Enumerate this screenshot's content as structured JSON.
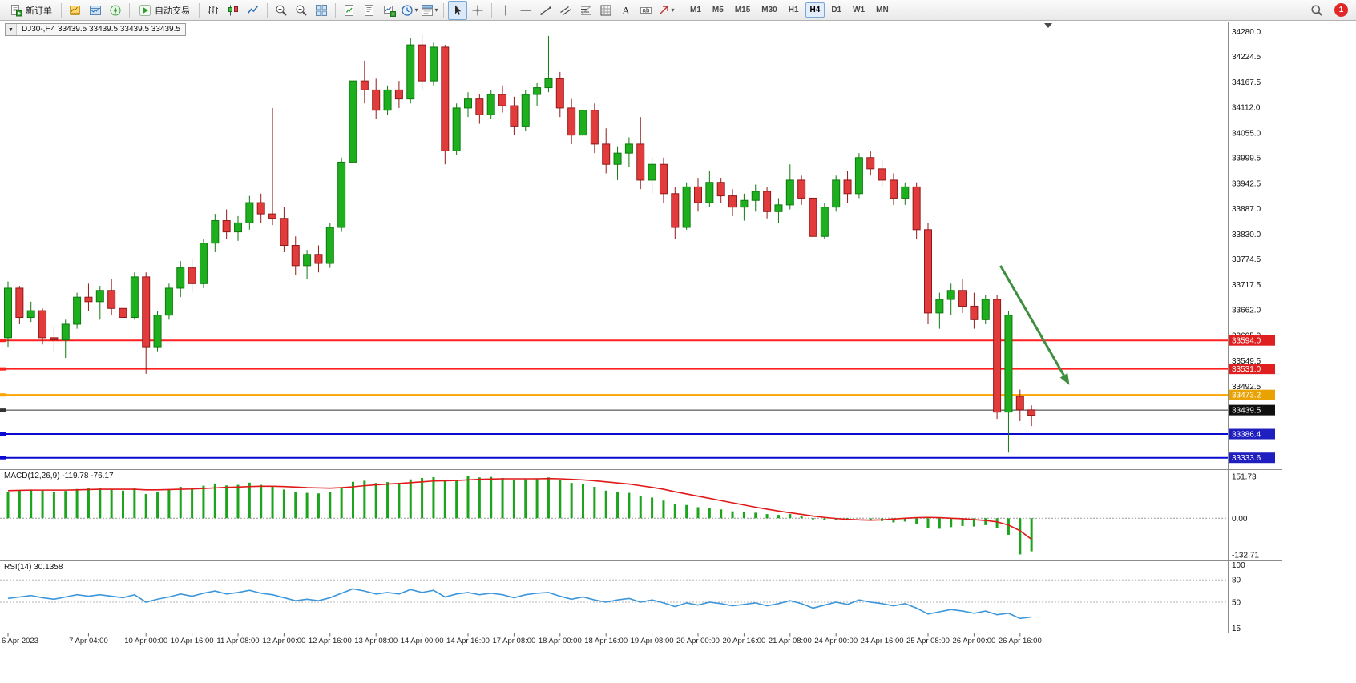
{
  "toolbar": {
    "notification_count": "1",
    "timeframes": [
      "M1",
      "M5",
      "M15",
      "M30",
      "H1",
      "H4",
      "D1",
      "W1",
      "MN"
    ],
    "active_timeframe": "H4",
    "groups": [
      {
        "name": "trade",
        "items": [
          {
            "icon": "new-order-icon",
            "label": "新订单",
            "name": "new-order-button"
          }
        ]
      },
      {
        "name": "windows",
        "items": [
          {
            "icon": "chart-profile-icon",
            "name": "profiles-button"
          },
          {
            "icon": "market-watch-icon",
            "name": "market-watch-button"
          },
          {
            "icon": "navigator-icon",
            "name": "navigator-button"
          }
        ]
      },
      {
        "name": "autotrade",
        "items": [
          {
            "icon": "autotrade-play-icon",
            "label": "自动交易",
            "name": "auto-trading-button"
          }
        ]
      },
      {
        "name": "chart-type",
        "items": [
          {
            "icon": "bars-chart-icon",
            "name": "bars-chart-button"
          },
          {
            "icon": "candles-chart-icon",
            "name": "candles-chart-button"
          },
          {
            "icon": "line-chart-icon",
            "name": "line-chart-button"
          }
        ]
      },
      {
        "name": "zoom",
        "items": [
          {
            "icon": "zoom-in-icon",
            "name": "zoom-in-button"
          },
          {
            "icon": "zoom-out-icon",
            "name": "zoom-out-button"
          },
          {
            "icon": "tile-windows-icon",
            "name": "tile-windows-button"
          }
        ]
      },
      {
        "name": "docs",
        "items": [
          {
            "icon": "indicators-doc-icon",
            "name": "indicators-button"
          },
          {
            "icon": "templates-doc-icon",
            "name": "templates-button"
          },
          {
            "icon": "new-chart-icon",
            "name": "new-chart-button"
          },
          {
            "icon": "period-clock-icon",
            "name": "periods-button",
            "dropdown": true
          },
          {
            "icon": "template-gear-icon",
            "name": "template-button",
            "dropdown": true
          }
        ]
      },
      {
        "name": "cursor",
        "items": [
          {
            "icon": "cursor-icon",
            "name": "cursor-button",
            "active": true
          },
          {
            "icon": "crosshair-icon",
            "name": "crosshair-button"
          }
        ]
      },
      {
        "name": "objects",
        "items": [
          {
            "icon": "vline-icon",
            "name": "vertical-line-button"
          },
          {
            "icon": "hline-icon",
            "name": "horizontal-line-button"
          },
          {
            "icon": "trendline-icon",
            "name": "trendline-button"
          },
          {
            "icon": "channel-icon",
            "name": "channel-button"
          },
          {
            "icon": "fibo-icon",
            "name": "fibonacci-button"
          },
          {
            "icon": "shapes-grid-icon",
            "name": "shapes-button"
          },
          {
            "icon": "text-icon",
            "name": "text-button"
          },
          {
            "icon": "label-icon",
            "name": "label-button"
          },
          {
            "icon": "arrows-icon",
            "name": "arrows-button",
            "dropdown": true
          }
        ]
      }
    ]
  },
  "chart": {
    "symbol": "DJ30-",
    "period": "H4",
    "title": "DJ30-,H4 33439.5 33439.5 33439.5 33439.5",
    "ohlc": {
      "open": "33439.5",
      "high": "33439.5",
      "low": "33439.5",
      "close": "33439.5"
    }
  },
  "chart_data": {
    "type": "candlestick",
    "symbol": "DJ30-",
    "timeframe": "H4",
    "colors": {
      "up": "#1DAF1D",
      "up_edge": "#0E7A0E",
      "down": "#E23B3B",
      "down_edge": "#921919",
      "macd_hist": "#1CA41C",
      "macd_signal": "#E01818",
      "rsi_line": "#3C96D9",
      "arrow": "#3E8E3E"
    },
    "price_axis": {
      "range": [
        33310,
        34300
      ],
      "labels": [
        "34280.0",
        "34224.5",
        "34167.5",
        "34112.0",
        "34055.0",
        "33999.5",
        "33942.5",
        "33887.0",
        "33830.0",
        "33774.5",
        "33717.5",
        "33662.0",
        "33605.0",
        "33549.5",
        "33492.5"
      ]
    },
    "hlines": [
      {
        "price": 33594.0,
        "label": "33594.0",
        "color": "#FF2020",
        "badge": "#E02020",
        "width": 2,
        "kind": "resistance"
      },
      {
        "price": 33531.0,
        "label": "33531.0",
        "color": "#FF2020",
        "badge": "#E02020",
        "width": 2,
        "kind": "resistance"
      },
      {
        "price": 33473.2,
        "label": "33473.2",
        "color": "#FFA500",
        "badge": "#E8A202",
        "width": 2,
        "kind": "level"
      },
      {
        "price": 33439.5,
        "label": "33439.5",
        "color": "#333333",
        "badge": "#101010",
        "width": 1,
        "kind": "current-price"
      },
      {
        "price": 33386.4,
        "label": "33386.4",
        "color": "#0A0AD0",
        "badge": "#1F1FBF",
        "width": 2,
        "kind": "support"
      },
      {
        "price": 33333.6,
        "label": "33333.6",
        "color": "#0A0AD0",
        "badge": "#1F1FBF",
        "width": 2,
        "kind": "support"
      }
    ],
    "x_labels": [
      {
        "i": 0,
        "t": "6 Apr 2023"
      },
      {
        "i": 7,
        "t": "7 Apr 04:00"
      },
      {
        "i": 12,
        "t": "10 Apr 00:00"
      },
      {
        "i": 16,
        "t": "10 Apr 16:00"
      },
      {
        "i": 20,
        "t": "11 Apr 08:00"
      },
      {
        "i": 24,
        "t": "12 Apr 00:00"
      },
      {
        "i": 28,
        "t": "12 Apr 16:00"
      },
      {
        "i": 32,
        "t": "13 Apr 08:00"
      },
      {
        "i": 36,
        "t": "14 Apr 00:00"
      },
      {
        "i": 40,
        "t": "14 Apr 16:00"
      },
      {
        "i": 44,
        "t": "17 Apr 08:00"
      },
      {
        "i": 48,
        "t": "18 Apr 00:00"
      },
      {
        "i": 52,
        "t": "18 Apr 16:00"
      },
      {
        "i": 56,
        "t": "19 Apr 08:00"
      },
      {
        "i": 60,
        "t": "20 Apr 00:00"
      },
      {
        "i": 64,
        "t": "20 Apr 16:00"
      },
      {
        "i": 68,
        "t": "21 Apr 08:00"
      },
      {
        "i": 72,
        "t": "24 Apr 00:00"
      },
      {
        "i": 76,
        "t": "24 Apr 16:00"
      },
      {
        "i": 80,
        "t": "25 Apr 08:00"
      },
      {
        "i": 84,
        "t": "26 Apr 00:00"
      },
      {
        "i": 88,
        "t": "26 Apr 16:00"
      }
    ],
    "candles": [
      [
        33600,
        33725,
        33580,
        33710
      ],
      [
        33710,
        33715,
        33630,
        33645
      ],
      [
        33645,
        33680,
        33635,
        33660
      ],
      [
        33660,
        33665,
        33585,
        33600
      ],
      [
        33600,
        33625,
        33570,
        33595
      ],
      [
        33595,
        33640,
        33555,
        33630
      ],
      [
        33630,
        33700,
        33620,
        33690
      ],
      [
        33690,
        33720,
        33660,
        33680
      ],
      [
        33680,
        33715,
        33640,
        33705
      ],
      [
        33705,
        33730,
        33650,
        33665
      ],
      [
        33665,
        33690,
        33625,
        33645
      ],
      [
        33645,
        33745,
        33640,
        33735
      ],
      [
        33735,
        33745,
        33520,
        33580
      ],
      [
        33580,
        33660,
        33570,
        33650
      ],
      [
        33650,
        33720,
        33640,
        33710
      ],
      [
        33710,
        33770,
        33690,
        33755
      ],
      [
        33755,
        33775,
        33700,
        33720
      ],
      [
        33720,
        33820,
        33710,
        33810
      ],
      [
        33810,
        33875,
        33790,
        33860
      ],
      [
        33860,
        33885,
        33820,
        33835
      ],
      [
        33835,
        33870,
        33815,
        33855
      ],
      [
        33855,
        33915,
        33840,
        33900
      ],
      [
        33900,
        33920,
        33855,
        33875
      ],
      [
        33875,
        34110,
        33850,
        33865
      ],
      [
        33865,
        33890,
        33790,
        33805
      ],
      [
        33805,
        33825,
        33740,
        33760
      ],
      [
        33760,
        33795,
        33730,
        33785
      ],
      [
        33785,
        33805,
        33745,
        33765
      ],
      [
        33765,
        33855,
        33755,
        33845
      ],
      [
        33845,
        34000,
        33835,
        33990
      ],
      [
        33990,
        34185,
        33980,
        34170
      ],
      [
        34170,
        34215,
        34120,
        34150
      ],
      [
        34150,
        34175,
        34085,
        34105
      ],
      [
        34105,
        34160,
        34095,
        34150
      ],
      [
        34150,
        34170,
        34110,
        34130
      ],
      [
        34130,
        34265,
        34120,
        34250
      ],
      [
        34250,
        34275,
        34150,
        34170
      ],
      [
        34170,
        34255,
        34160,
        34245
      ],
      [
        34245,
        34250,
        33985,
        34015
      ],
      [
        34015,
        34120,
        34005,
        34110
      ],
      [
        34110,
        34145,
        34090,
        34130
      ],
      [
        34130,
        34140,
        34075,
        34095
      ],
      [
        34095,
        34150,
        34085,
        34140
      ],
      [
        34140,
        34160,
        34100,
        34115
      ],
      [
        34115,
        34135,
        34050,
        34070
      ],
      [
        34070,
        34150,
        34060,
        34140
      ],
      [
        34140,
        34165,
        34115,
        34155
      ],
      [
        34155,
        34270,
        34145,
        34175
      ],
      [
        34175,
        34190,
        34090,
        34110
      ],
      [
        34110,
        34130,
        34030,
        34050
      ],
      [
        34050,
        34115,
        34040,
        34105
      ],
      [
        34105,
        34120,
        34010,
        34030
      ],
      [
        34030,
        34065,
        33965,
        33985
      ],
      [
        33985,
        34025,
        33950,
        34010
      ],
      [
        34010,
        34045,
        33980,
        34030
      ],
      [
        34030,
        34090,
        33930,
        33950
      ],
      [
        33950,
        34000,
        33920,
        33985
      ],
      [
        33985,
        34000,
        33900,
        33920
      ],
      [
        33920,
        33935,
        33820,
        33845
      ],
      [
        33845,
        33945,
        33840,
        33935
      ],
      [
        33935,
        33955,
        33880,
        33900
      ],
      [
        33900,
        33970,
        33890,
        33945
      ],
      [
        33945,
        33955,
        33900,
        33915
      ],
      [
        33915,
        33930,
        33870,
        33890
      ],
      [
        33890,
        33920,
        33860,
        33905
      ],
      [
        33905,
        33940,
        33880,
        33925
      ],
      [
        33925,
        33935,
        33865,
        33880
      ],
      [
        33880,
        33910,
        33855,
        33895
      ],
      [
        33895,
        33985,
        33885,
        33950
      ],
      [
        33950,
        33960,
        33895,
        33910
      ],
      [
        33910,
        33930,
        33805,
        33825
      ],
      [
        33825,
        33900,
        33820,
        33890
      ],
      [
        33890,
        33960,
        33880,
        33950
      ],
      [
        33950,
        33970,
        33900,
        33920
      ],
      [
        33920,
        34010,
        33910,
        34000
      ],
      [
        34000,
        34015,
        33960,
        33975
      ],
      [
        33975,
        33995,
        33935,
        33950
      ],
      [
        33950,
        33965,
        33895,
        33910
      ],
      [
        33910,
        33945,
        33895,
        33935
      ],
      [
        33935,
        33945,
        33820,
        33840
      ],
      [
        33840,
        33855,
        33630,
        33655
      ],
      [
        33655,
        33700,
        33620,
        33685
      ],
      [
        33685,
        33720,
        33650,
        33705
      ],
      [
        33705,
        33730,
        33655,
        33670
      ],
      [
        33670,
        33700,
        33620,
        33640
      ],
      [
        33640,
        33695,
        33630,
        33685
      ],
      [
        33685,
        33695,
        33420,
        33435
      ],
      [
        33435,
        33660,
        33345,
        33650
      ],
      [
        33470,
        33485,
        33415,
        33440
      ],
      [
        33440,
        33450,
        33404,
        33428
      ]
    ],
    "arrow": {
      "x1i": 86.3,
      "p1": 33760,
      "x2i": 92.3,
      "p2": 33495,
      "width": 3
    },
    "macd": {
      "title": "MACD(12,26,9) -119.78 -76.17",
      "axis_labels": [
        "151.73",
        "0.00",
        "-132.71"
      ],
      "axis_values": [
        151.73,
        0,
        -132.71
      ],
      "range": [
        -150,
        172
      ],
      "histogram": [
        96,
        100,
        104,
        100,
        96,
        99,
        106,
        108,
        111,
        106,
        100,
        108,
        88,
        94,
        104,
        114,
        110,
        118,
        126,
        119,
        121,
        129,
        121,
        114,
        104,
        95,
        92,
        90,
        96,
        112,
        132,
        136,
        128,
        131,
        128,
        141,
        146,
        149,
        136,
        139,
        151.7,
        148,
        150,
        146,
        138,
        141,
        143,
        148,
        139,
        128,
        125,
        114,
        100,
        95,
        92,
        80,
        75,
        64,
        50,
        48,
        40,
        38,
        32,
        25,
        22,
        20,
        15,
        12,
        15,
        8,
        -4,
        -8,
        -5,
        -8,
        0,
        -5,
        -10,
        -15,
        -12,
        -20,
        -35,
        -38,
        -32,
        -28,
        -30,
        -25,
        -35,
        -60,
        -131,
        -119.8
      ],
      "signal": [
        100,
        101,
        102,
        102,
        102,
        102,
        103,
        104,
        105,
        105,
        105,
        105,
        103,
        103,
        104,
        105,
        106,
        108,
        110,
        112,
        113,
        115,
        116,
        116,
        115,
        113,
        111,
        110,
        109,
        111,
        114,
        118,
        121,
        124,
        126,
        129,
        132,
        135,
        136,
        137,
        139,
        141,
        142,
        143,
        143,
        143,
        143,
        144,
        143,
        141,
        139,
        136,
        132,
        128,
        124,
        118,
        112,
        105,
        96,
        88,
        80,
        72,
        64,
        56,
        48,
        40,
        33,
        26,
        20,
        14,
        8,
        3,
        -1,
        -4,
        -6,
        -7,
        -6,
        -3,
        0,
        2,
        3,
        2,
        0,
        -2,
        -5,
        -8,
        -13,
        -25,
        -45,
        -76.2
      ]
    },
    "rsi": {
      "title": "RSI(14) 30.1358",
      "axis_labels": [
        "100",
        "80",
        "50",
        "15"
      ],
      "axis_values": [
        100,
        80,
        50,
        15
      ],
      "levels": [
        80,
        50
      ],
      "range": [
        10,
        104
      ],
      "values": [
        55,
        57,
        59,
        56,
        54,
        57,
        60,
        58,
        60,
        58,
        56,
        60,
        50,
        54,
        57,
        61,
        58,
        62,
        65,
        61,
        63,
        66,
        62,
        60,
        56,
        52,
        54,
        52,
        56,
        62,
        68,
        65,
        61,
        63,
        61,
        67,
        63,
        66,
        57,
        61,
        63,
        60,
        62,
        60,
        56,
        60,
        62,
        63,
        58,
        54,
        57,
        53,
        50,
        53,
        55,
        50,
        53,
        49,
        44,
        49,
        46,
        50,
        48,
        45,
        47,
        49,
        45,
        48,
        52,
        48,
        42,
        46,
        50,
        47,
        53,
        50,
        48,
        45,
        48,
        42,
        34,
        37,
        40,
        38,
        35,
        38,
        33,
        35,
        28,
        30.1
      ]
    }
  }
}
